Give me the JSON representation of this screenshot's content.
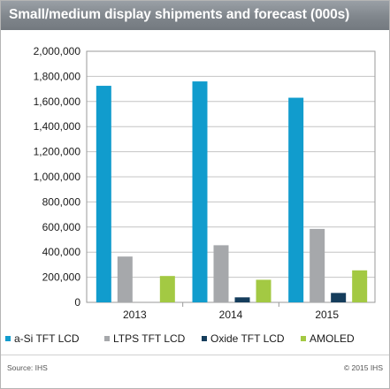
{
  "header": {
    "title": "Small/medium display shipments and forecast (000s)"
  },
  "footer": {
    "source": "Source: IHS",
    "copyright": "© 2015 IHS"
  },
  "chart_data": {
    "type": "bar",
    "title": "Small/medium display shipments and forecast (000s)",
    "categories": [
      "2013",
      "2014",
      "2015"
    ],
    "series": [
      {
        "name": "a-Si TFT LCD",
        "color": "#119ccd",
        "values": [
          1725000,
          1760000,
          1630000
        ]
      },
      {
        "name": "LTPS TFT LCD",
        "color": "#a6a8ab",
        "values": [
          365000,
          455000,
          585000
        ]
      },
      {
        "name": "Oxide TFT LCD",
        "color": "#153d5c",
        "values": [
          0,
          40000,
          75000
        ]
      },
      {
        "name": "AMOLED",
        "color": "#a3c943",
        "values": [
          210000,
          180000,
          255000
        ]
      }
    ],
    "ylim": [
      0,
      2000000
    ],
    "yticks": [
      0,
      200000,
      400000,
      600000,
      800000,
      1000000,
      1200000,
      1400000,
      1600000,
      1800000,
      2000000
    ],
    "ytick_labels": [
      "0",
      "200,000",
      "400,000",
      "600,000",
      "800,000",
      "1,000,000",
      "1,200,000",
      "1,400,000",
      "1,600,000",
      "1,800,000",
      "2,000,000"
    ],
    "grid": true,
    "legend_position": "bottom"
  }
}
